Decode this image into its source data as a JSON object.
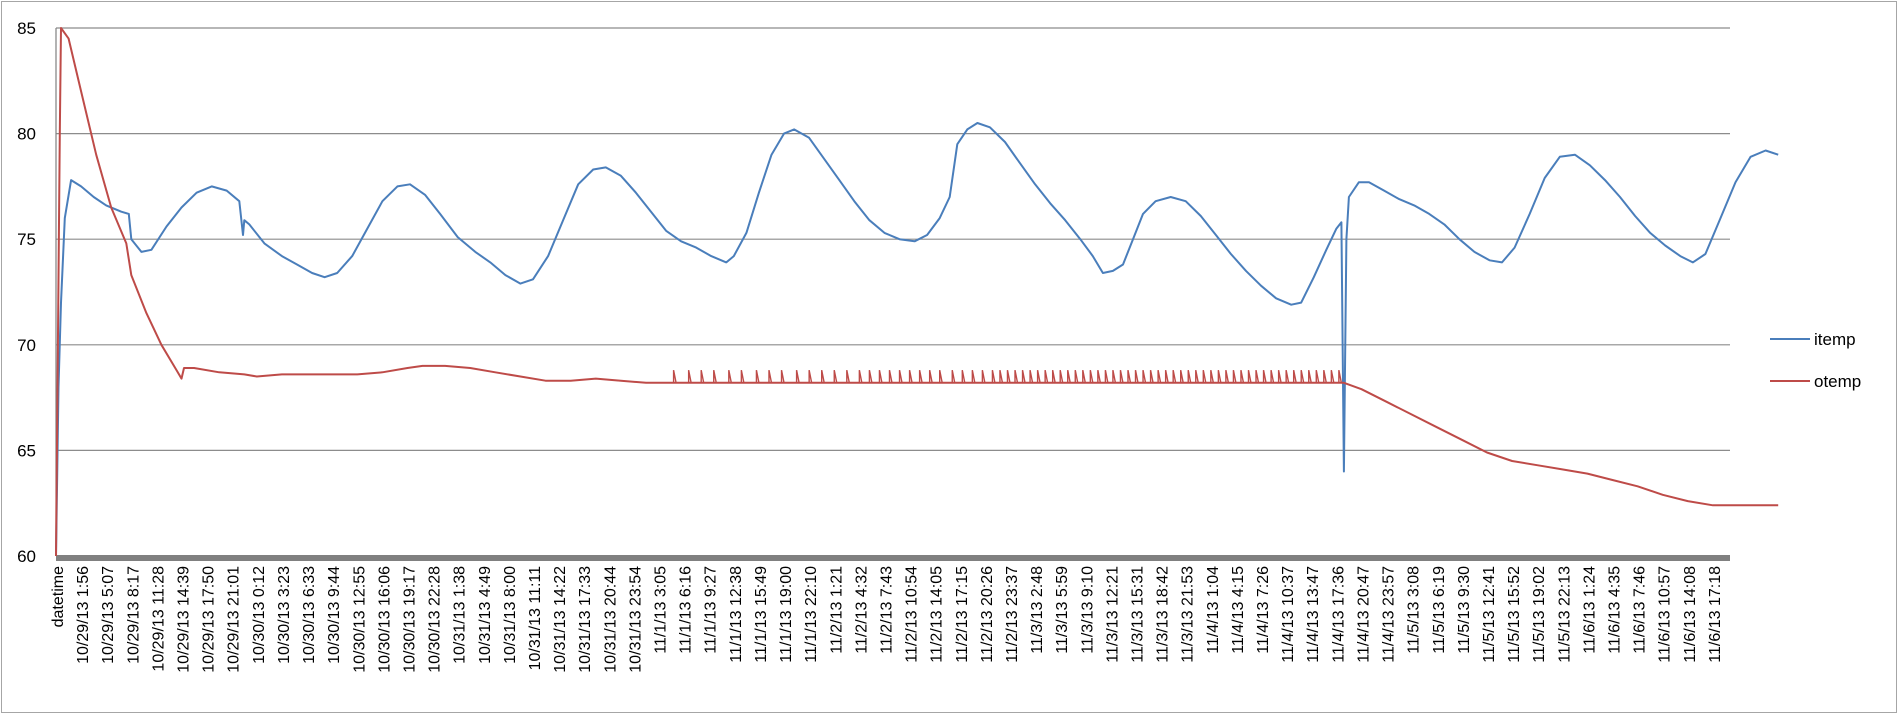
{
  "chart_data": {
    "type": "line",
    "title": "",
    "xlabel": "",
    "ylabel": "",
    "ylim": [
      60,
      85
    ],
    "yticks": [
      60,
      65,
      70,
      75,
      80,
      85
    ],
    "grid": "horizontal",
    "legend_position": "right",
    "colors": {
      "itemp": "#4a7ebb",
      "otemp": "#be4b48",
      "grid": "#8c8c8c",
      "axis": "#808080"
    },
    "categories": [
      "datetime",
      "10/29/13 1:56",
      "10/29/13 5:07",
      "10/29/13 8:17",
      "10/29/13 11:28",
      "10/29/13 14:39",
      "10/29/13 17:50",
      "10/29/13 21:01",
      "10/30/13 0:12",
      "10/30/13 3:23",
      "10/30/13 6:33",
      "10/30/13 9:44",
      "10/30/13 12:55",
      "10/30/13 16:06",
      "10/30/13 19:17",
      "10/30/13 22:28",
      "10/31/13 1:38",
      "10/31/13 4:49",
      "10/31/13 8:00",
      "10/31/13 11:11",
      "10/31/13 14:22",
      "10/31/13 17:33",
      "10/31/13 20:44",
      "10/31/13 23:54",
      "11/1/13 3:05",
      "11/1/13 6:16",
      "11/1/13 9:27",
      "11/1/13 12:38",
      "11/1/13 15:49",
      "11/1/13 19:00",
      "11/1/13 22:10",
      "11/2/13 1:21",
      "11/2/13 4:32",
      "11/2/13 7:43",
      "11/2/13 10:54",
      "11/2/13 14:05",
      "11/2/13 17:15",
      "11/2/13 20:26",
      "11/2/13 23:37",
      "11/3/13 2:48",
      "11/3/13 5:59",
      "11/3/13 9:10",
      "11/3/13 12:21",
      "11/3/13 15:31",
      "11/3/13 18:42",
      "11/3/13 21:53",
      "11/4/13 1:04",
      "11/4/13 4:15",
      "11/4/13 7:26",
      "11/4/13 10:37",
      "11/4/13 13:47",
      "11/4/13 17:36",
      "11/4/13 20:47",
      "11/4/13 23:57",
      "11/5/13 3:08",
      "11/5/13 6:19",
      "11/5/13 9:30",
      "11/5/13 12:41",
      "11/5/13 15:52",
      "11/5/13 19:02",
      "11/5/13 22:13",
      "11/6/13 1:24",
      "11/6/13 4:35",
      "11/6/13 7:46",
      "11/6/13 10:57",
      "11/6/13 14:08",
      "11/6/13 17:18"
    ],
    "series": [
      {
        "name": "itemp",
        "points": [
          [
            0,
            60
          ],
          [
            0.1,
            68
          ],
          [
            0.2,
            72
          ],
          [
            0.35,
            76
          ],
          [
            0.6,
            77.8
          ],
          [
            1,
            77.5
          ],
          [
            1.5,
            77
          ],
          [
            2,
            76.6
          ],
          [
            2.6,
            76.3
          ],
          [
            2.9,
            76.2
          ],
          [
            3.0,
            75
          ],
          [
            3.4,
            74.4
          ],
          [
            3.8,
            74.5
          ],
          [
            4.4,
            75.6
          ],
          [
            5,
            76.5
          ],
          [
            5.6,
            77.2
          ],
          [
            6.2,
            77.5
          ],
          [
            6.8,
            77.3
          ],
          [
            7.3,
            76.8
          ],
          [
            7.45,
            75.2
          ],
          [
            7.5,
            75.9
          ],
          [
            7.7,
            75.7
          ],
          [
            8.3,
            74.8
          ],
          [
            9,
            74.2
          ],
          [
            9.6,
            73.8
          ],
          [
            10.2,
            73.4
          ],
          [
            10.7,
            73.2
          ],
          [
            11.2,
            73.4
          ],
          [
            11.8,
            74.2
          ],
          [
            12.4,
            75.5
          ],
          [
            13,
            76.8
          ],
          [
            13.6,
            77.5
          ],
          [
            14.1,
            77.6
          ],
          [
            14.7,
            77.1
          ],
          [
            15.3,
            76.2
          ],
          [
            16,
            75.1
          ],
          [
            16.7,
            74.4
          ],
          [
            17.3,
            73.9
          ],
          [
            17.9,
            73.3
          ],
          [
            18.5,
            72.9
          ],
          [
            19,
            73.1
          ],
          [
            19.6,
            74.2
          ],
          [
            20.2,
            75.9
          ],
          [
            20.8,
            77.6
          ],
          [
            21.4,
            78.3
          ],
          [
            21.9,
            78.4
          ],
          [
            22.5,
            78
          ],
          [
            23.1,
            77.2
          ],
          [
            23.7,
            76.3
          ],
          [
            24.3,
            75.4
          ],
          [
            24.9,
            74.9
          ],
          [
            25.5,
            74.6
          ],
          [
            26.1,
            74.2
          ],
          [
            26.7,
            73.9
          ],
          [
            27,
            74.2
          ],
          [
            27.5,
            75.3
          ],
          [
            28,
            77.2
          ],
          [
            28.5,
            79
          ],
          [
            29,
            80
          ],
          [
            29.4,
            80.2
          ],
          [
            30,
            79.8
          ],
          [
            30.6,
            78.8
          ],
          [
            31.2,
            77.8
          ],
          [
            31.8,
            76.8
          ],
          [
            32.4,
            75.9
          ],
          [
            33,
            75.3
          ],
          [
            33.6,
            75
          ],
          [
            34.2,
            74.9
          ],
          [
            34.7,
            75.2
          ],
          [
            35.2,
            76
          ],
          [
            35.6,
            77
          ],
          [
            35.9,
            79.5
          ],
          [
            36.3,
            80.2
          ],
          [
            36.7,
            80.5
          ],
          [
            37.2,
            80.3
          ],
          [
            37.8,
            79.6
          ],
          [
            38.4,
            78.6
          ],
          [
            39,
            77.6
          ],
          [
            39.6,
            76.7
          ],
          [
            40.2,
            75.9
          ],
          [
            40.8,
            75
          ],
          [
            41.3,
            74.2
          ],
          [
            41.7,
            73.4
          ],
          [
            42.1,
            73.5
          ],
          [
            42.5,
            73.8
          ],
          [
            42.9,
            75
          ],
          [
            43.3,
            76.2
          ],
          [
            43.8,
            76.8
          ],
          [
            44.4,
            77
          ],
          [
            45,
            76.8
          ],
          [
            45.6,
            76.1
          ],
          [
            46.2,
            75.2
          ],
          [
            46.8,
            74.3
          ],
          [
            47.4,
            73.5
          ],
          [
            48,
            72.8
          ],
          [
            48.6,
            72.2
          ],
          [
            49.2,
            71.9
          ],
          [
            49.6,
            72
          ],
          [
            50.1,
            73.2
          ],
          [
            50.6,
            74.5
          ],
          [
            51.0,
            75.5
          ],
          [
            51.2,
            75.8
          ],
          [
            51.3,
            64
          ],
          [
            51.4,
            75
          ],
          [
            51.5,
            77
          ],
          [
            51.9,
            77.7
          ],
          [
            52.3,
            77.7
          ],
          [
            52.9,
            77.3
          ],
          [
            53.5,
            76.9
          ],
          [
            54.1,
            76.6
          ],
          [
            54.7,
            76.2
          ],
          [
            55.3,
            75.7
          ],
          [
            55.9,
            75
          ],
          [
            56.5,
            74.4
          ],
          [
            57.1,
            74
          ],
          [
            57.6,
            73.9
          ],
          [
            58.1,
            74.6
          ],
          [
            58.7,
            76.2
          ],
          [
            59.3,
            77.9
          ],
          [
            59.9,
            78.9
          ],
          [
            60.5,
            79
          ],
          [
            61.1,
            78.5
          ],
          [
            61.7,
            77.8
          ],
          [
            62.3,
            77
          ],
          [
            62.9,
            76.1
          ],
          [
            63.5,
            75.3
          ],
          [
            64.1,
            74.7
          ],
          [
            64.7,
            74.2
          ],
          [
            65.2,
            73.9
          ],
          [
            65.7,
            74.3
          ],
          [
            66.3,
            76
          ],
          [
            66.9,
            77.7
          ],
          [
            67.5,
            78.9
          ],
          [
            68.1,
            79.2
          ],
          [
            68.6,
            79
          ]
        ]
      },
      {
        "name": "otemp",
        "points": [
          [
            0,
            60
          ],
          [
            0.15,
            80
          ],
          [
            0.2,
            85
          ],
          [
            0.5,
            84.5
          ],
          [
            1,
            82
          ],
          [
            1.6,
            79
          ],
          [
            2.2,
            76.5
          ],
          [
            2.8,
            74.8
          ],
          [
            3.0,
            73.3
          ],
          [
            3.6,
            71.5
          ],
          [
            4.2,
            70
          ],
          [
            4.8,
            68.8
          ],
          [
            5.0,
            68.4
          ],
          [
            5.1,
            68.9
          ],
          [
            5.5,
            68.9
          ],
          [
            6.5,
            68.7
          ],
          [
            7.5,
            68.6
          ],
          [
            8,
            68.5
          ],
          [
            9,
            68.6
          ],
          [
            10,
            68.6
          ],
          [
            11,
            68.6
          ],
          [
            12,
            68.6
          ],
          [
            13,
            68.7
          ],
          [
            14,
            68.9
          ],
          [
            14.6,
            69
          ],
          [
            15.5,
            69
          ],
          [
            16.5,
            68.9
          ],
          [
            17.5,
            68.7
          ],
          [
            18.5,
            68.5
          ],
          [
            19.5,
            68.3
          ],
          [
            20.5,
            68.3
          ],
          [
            21.5,
            68.4
          ],
          [
            22.5,
            68.3
          ],
          [
            23.5,
            68.2
          ],
          [
            24.5,
            68.2
          ],
          [
            25.5,
            68.2
          ],
          [
            26.5,
            68.2
          ],
          [
            27.5,
            68.2
          ],
          [
            28.5,
            68.2
          ],
          [
            29.5,
            68.2
          ],
          [
            30.5,
            68.2
          ],
          [
            31.5,
            68.2
          ],
          [
            32.5,
            68.2
          ],
          [
            33.5,
            68.2
          ],
          [
            34.5,
            68.2
          ],
          [
            35.5,
            68.2
          ],
          [
            36.5,
            68.2
          ],
          [
            37.5,
            68.2
          ],
          [
            38.5,
            68.2
          ],
          [
            39.5,
            68.2
          ],
          [
            40.5,
            68.2
          ],
          [
            41.5,
            68.2
          ],
          [
            42.5,
            68.2
          ],
          [
            43.5,
            68.2
          ],
          [
            44.5,
            68.2
          ],
          [
            45.5,
            68.2
          ],
          [
            46.5,
            68.2
          ],
          [
            47.5,
            68.2
          ],
          [
            48.5,
            68.2
          ],
          [
            49.5,
            68.2
          ],
          [
            50.5,
            68.2
          ],
          [
            51.3,
            68.2
          ],
          [
            52,
            67.9
          ],
          [
            53,
            67.3
          ],
          [
            54,
            66.7
          ],
          [
            55,
            66.1
          ],
          [
            56,
            65.5
          ],
          [
            57,
            64.9
          ],
          [
            58,
            64.5
          ],
          [
            59,
            64.3
          ],
          [
            60,
            64.1
          ],
          [
            61,
            63.9
          ],
          [
            62,
            63.6
          ],
          [
            63,
            63.3
          ],
          [
            64,
            62.9
          ],
          [
            65,
            62.6
          ],
          [
            66,
            62.4
          ],
          [
            67,
            62.4
          ],
          [
            68,
            62.4
          ],
          [
            68.6,
            62.4
          ]
        ]
      }
    ],
    "otemp_spikes": [
      24.6,
      25.2,
      25.7,
      26.2,
      26.8,
      27.3,
      27.9,
      28.4,
      28.9,
      29.5,
      30,
      30.5,
      31,
      31.5,
      32,
      32.4,
      32.8,
      33.2,
      33.6,
      34,
      34.4,
      34.8,
      35.2,
      35.7,
      36.1,
      36.5,
      36.9,
      37.3,
      37.6,
      37.9,
      38.2,
      38.5,
      38.8,
      39.1,
      39.4,
      39.7,
      40,
      40.3,
      40.6,
      40.9,
      41.2,
      41.5,
      41.8,
      42.1,
      42.4,
      42.7,
      43,
      43.3,
      43.6,
      43.9,
      44.2,
      44.5,
      44.8,
      45.1,
      45.4,
      45.7,
      46,
      46.3,
      46.6,
      46.9,
      47.2,
      47.5,
      47.8,
      48.1,
      48.4,
      48.7,
      49,
      49.3,
      49.6,
      49.9,
      50.2,
      50.5,
      50.8,
      51.1
    ],
    "otemp_spike_peak": 68.8
  }
}
